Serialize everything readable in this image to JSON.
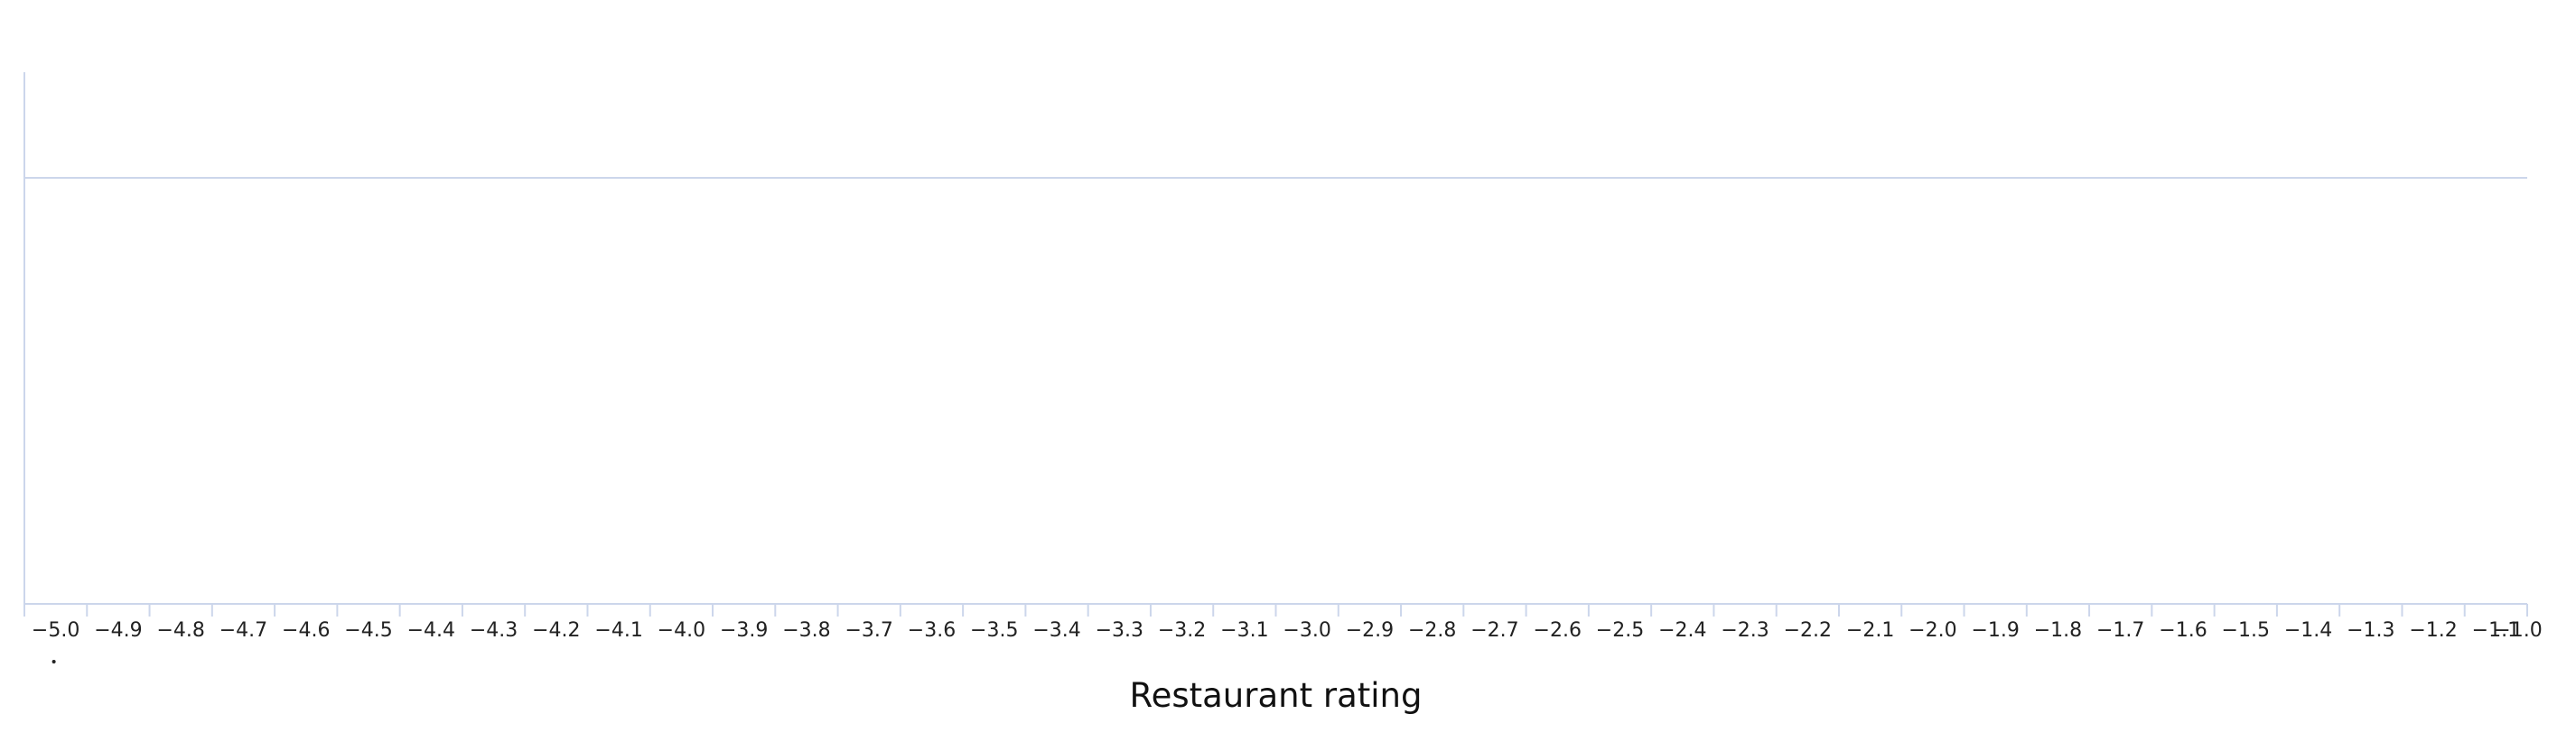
{
  "chart_data": {
    "type": "bar",
    "title": "",
    "xlabel": "Restaurant rating",
    "ylabel": "",
    "xlim": [
      -5.0,
      -1.0
    ],
    "tick_step": 0.1,
    "tick_labels": [
      "−5.0",
      "−4.9",
      "−4.8",
      "−4.7",
      "−4.6",
      "−4.5",
      "−4.4",
      "−4.3",
      "−4.2",
      "−4.1",
      "−4.0",
      "−3.9",
      "−3.8",
      "−3.7",
      "−3.6",
      "−3.5",
      "−3.4",
      "−3.3",
      "−3.2",
      "−3.1",
      "−3.0",
      "−2.9",
      "−2.8",
      "−2.7",
      "−2.6",
      "−2.5",
      "−2.4",
      "−2.3",
      "−2.2",
      "−2.1",
      "−2.0",
      "−1.9",
      "−1.8",
      "−1.7",
      "−1.6",
      "−1.5",
      "−1.4",
      "−1.3",
      "−1.2",
      "−1.1",
      "−1.0"
    ],
    "grid": true,
    "gridlines_y": 1,
    "series": [],
    "colors": {
      "axis": "#ccd6eb",
      "grid": "#ccd6eb",
      "text": "#222222"
    }
  }
}
